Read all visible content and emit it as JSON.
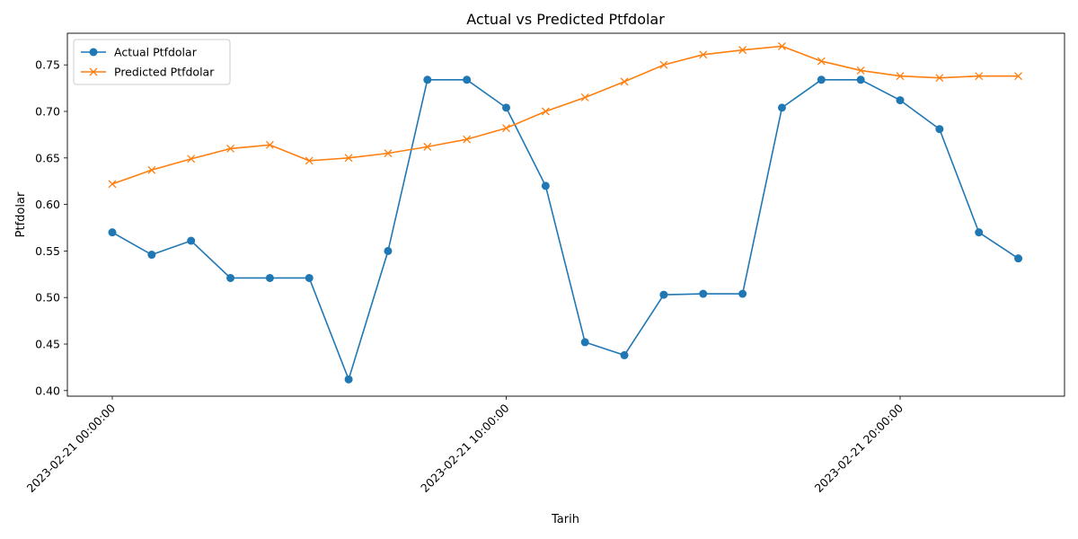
{
  "chart_data": {
    "type": "line",
    "title": "Actual vs Predicted Ptfdolar",
    "xlabel": "Tarih",
    "ylabel": "Ptfdolar",
    "x": [
      "2023-02-21 00:00:00",
      "2023-02-21 01:00:00",
      "2023-02-21 02:00:00",
      "2023-02-21 03:00:00",
      "2023-02-21 04:00:00",
      "2023-02-21 05:00:00",
      "2023-02-21 06:00:00",
      "2023-02-21 07:00:00",
      "2023-02-21 08:00:00",
      "2023-02-21 09:00:00",
      "2023-02-21 10:00:00",
      "2023-02-21 11:00:00",
      "2023-02-21 12:00:00",
      "2023-02-21 13:00:00",
      "2023-02-21 14:00:00",
      "2023-02-21 15:00:00",
      "2023-02-21 16:00:00",
      "2023-02-21 17:00:00",
      "2023-02-21 18:00:00",
      "2023-02-21 19:00:00",
      "2023-02-21 20:00:00",
      "2023-02-21 21:00:00",
      "2023-02-21 22:00:00",
      "2023-02-21 23:00:00"
    ],
    "xticks": [
      "2023-02-21 00:00:00",
      "2023-02-21 10:00:00",
      "2023-02-21 20:00:00"
    ],
    "yticks": [
      0.4,
      0.45,
      0.5,
      0.55,
      0.6,
      0.65,
      0.7,
      0.75
    ],
    "ytick_labels": [
      "0.40",
      "0.45",
      "0.50",
      "0.55",
      "0.60",
      "0.65",
      "0.70",
      "0.75"
    ],
    "ylim": [
      0.394,
      0.784
    ],
    "grid": false,
    "legend_position": "top-left",
    "series": [
      {
        "name": "Actual Ptfdolar",
        "color": "#1f77b4",
        "marker": "circle",
        "values": [
          0.57,
          0.546,
          0.561,
          0.521,
          0.521,
          0.521,
          0.412,
          0.55,
          0.734,
          0.734,
          0.704,
          0.62,
          0.452,
          0.438,
          0.503,
          0.504,
          0.504,
          0.704,
          0.734,
          0.734,
          0.712,
          0.681,
          0.57,
          0.542
        ]
      },
      {
        "name": "Predicted Ptfdolar",
        "color": "#ff7f0e",
        "marker": "x",
        "values": [
          0.622,
          0.637,
          0.649,
          0.66,
          0.664,
          0.647,
          0.65,
          0.655,
          0.662,
          0.67,
          0.682,
          0.7,
          0.715,
          0.732,
          0.75,
          0.761,
          0.766,
          0.77,
          0.754,
          0.744,
          0.738,
          0.736,
          0.738,
          0.738
        ]
      }
    ]
  }
}
